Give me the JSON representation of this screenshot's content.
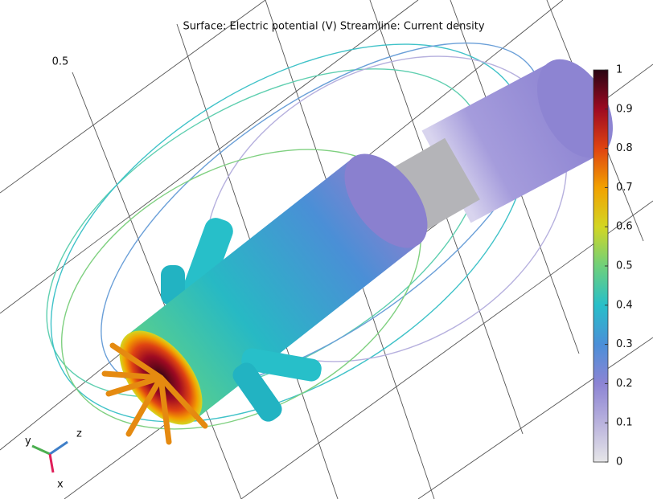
{
  "title": "Surface: Electric potential (V)  Streamline: Current density",
  "axis_label": "0.5",
  "colorbar": {
    "lim": [
      0,
      1
    ],
    "ticks": [
      0,
      0.1,
      0.2,
      0.3,
      0.4,
      0.5,
      0.6,
      0.7,
      0.8,
      0.9,
      1
    ],
    "colors": [
      "#e6e6e8",
      "#b9b2dd",
      "#8c84d4",
      "#4b8fd8",
      "#27bfc9",
      "#6fd07b",
      "#d3d623",
      "#f2a100",
      "#df4312",
      "#9e0a22",
      "#2a0512"
    ]
  },
  "triad": {
    "x": "x",
    "y": "y",
    "z": "z"
  }
}
